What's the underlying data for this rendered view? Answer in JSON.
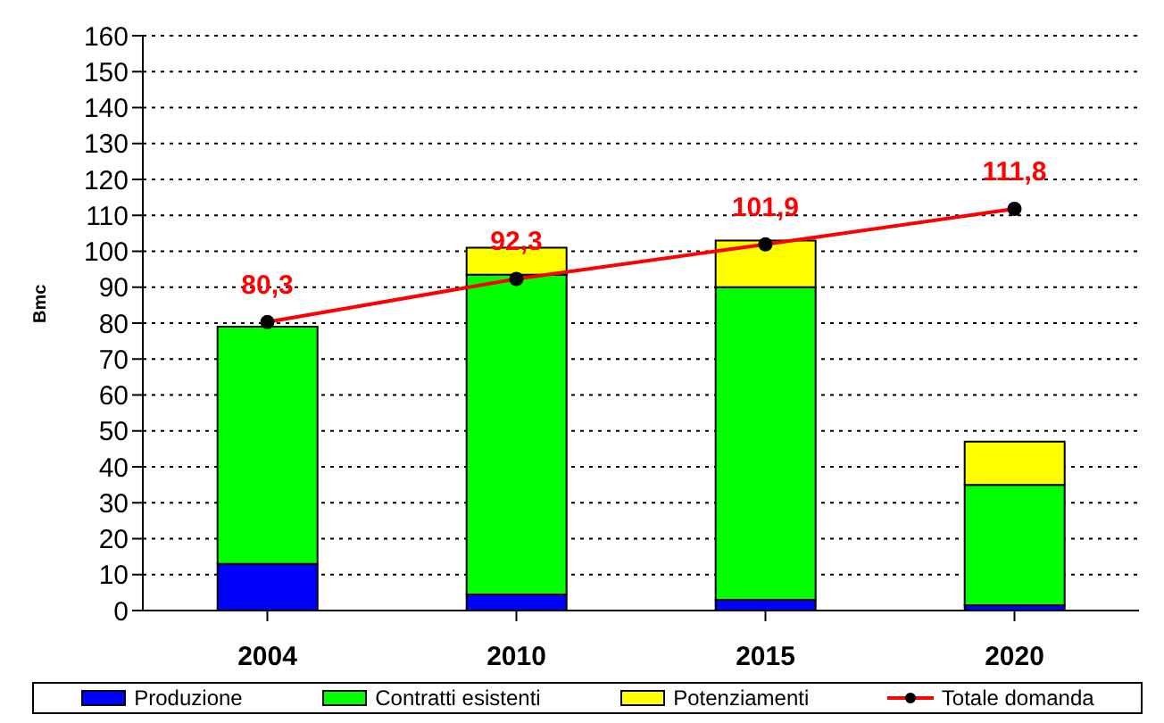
{
  "chart_data": {
    "type": "bar",
    "stacked": true,
    "ylabel": "Bmc",
    "categories": [
      "2004",
      "2010",
      "2015",
      "2020"
    ],
    "series": [
      {
        "name": "Produzione",
        "color": "#0000ff",
        "values": [
          13,
          4.5,
          3,
          1.5
        ]
      },
      {
        "name": "Contratti esistenti",
        "color": "#00ff00",
        "values": [
          66,
          89,
          87,
          33.5
        ]
      },
      {
        "name": "Potenziamenti",
        "color": "#ffff00",
        "values": [
          0,
          7.5,
          13,
          12
        ]
      },
      {
        "name": "Totale domanda",
        "type": "line",
        "color": "#ff0000",
        "values": [
          80.3,
          92.3,
          101.9,
          111.8
        ],
        "value_labels": [
          "80,3",
          "92,3",
          "101,9",
          "111,8"
        ]
      }
    ],
    "ylim": [
      0,
      160
    ],
    "yticks": [
      0,
      10,
      20,
      30,
      40,
      50,
      60,
      70,
      80,
      90,
      100,
      110,
      120,
      130,
      140,
      150,
      160
    ],
    "grid": "y",
    "legend": "bottom",
    "marker": "circle",
    "line_style": "solid"
  }
}
